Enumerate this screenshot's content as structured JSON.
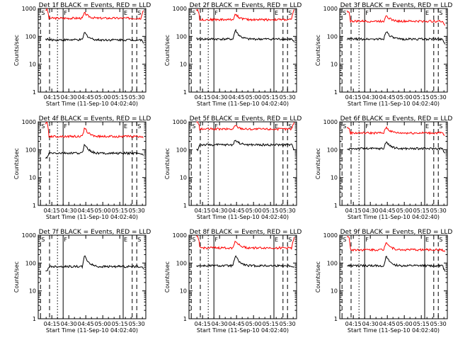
{
  "chart_data": [
    {
      "type": "line",
      "title": "Det 1f BLACK = Events, RED = LLD",
      "xlabel": "Start Time (11-Sep-10 04:02:40)",
      "ylabel": "Counts/sec",
      "yscale": "log",
      "ylim": [
        1,
        1000
      ],
      "x_ticks": [
        "04:15",
        "04:30",
        "04:45",
        "05:00",
        "05:15",
        "05:30"
      ],
      "y_ticks": [
        "1",
        "10",
        "100",
        "1000"
      ],
      "markers": [
        {
          "label": "S",
          "time": "04:05",
          "style": "dashed"
        },
        {
          "label": "",
          "time": "04:13",
          "style": "dashed"
        },
        {
          "label": "",
          "time": "04:20",
          "style": "dotted"
        },
        {
          "label": "F",
          "time": "04:25",
          "style": "solid"
        },
        {
          "label": "E",
          "time": "05:18",
          "style": "solid"
        },
        {
          "label": "",
          "time": "05:26",
          "style": "dashed"
        },
        {
          "label": "S",
          "time": "05:30",
          "style": "dashed"
        }
      ],
      "series": [
        {
          "color": "#ff0000",
          "base": 450,
          "spike": 700,
          "start_value": 900,
          "end_value": 900
        },
        {
          "color": "#000000",
          "base": 75,
          "spike": 140,
          "start_value": 80,
          "end_value": 60
        }
      ]
    },
    {
      "type": "line",
      "title": "Det 2f BLACK = Events, RED = LLD",
      "xlabel": "Start Time (11-Sep-10 04:02:40)",
      "ylabel": "Counts/sec",
      "yscale": "log",
      "ylim": [
        1,
        1000
      ],
      "x_ticks": [
        "04:15",
        "04:30",
        "04:45",
        "05:00",
        "05:15",
        "05:30"
      ],
      "y_ticks": [
        "1",
        "10",
        "100",
        "1000"
      ],
      "markers": [
        {
          "label": "S",
          "time": "04:05",
          "style": "dashed"
        },
        {
          "label": "",
          "time": "04:13",
          "style": "dashed"
        },
        {
          "label": "",
          "time": "04:20",
          "style": "dotted"
        },
        {
          "label": "F",
          "time": "04:25",
          "style": "solid"
        },
        {
          "label": "E",
          "time": "05:18",
          "style": "solid"
        },
        {
          "label": "",
          "time": "05:26",
          "style": "dashed"
        },
        {
          "label": "S",
          "time": "05:30",
          "style": "dashed"
        }
      ],
      "series": [
        {
          "color": "#ff0000",
          "base": 400,
          "spike": 650,
          "start_value": 900,
          "end_value": 900
        },
        {
          "color": "#000000",
          "base": 80,
          "spike": 170,
          "start_value": 80,
          "end_value": 60
        }
      ]
    },
    {
      "type": "line",
      "title": "Det 3f BLACK = Events, RED = LLD",
      "xlabel": "Start Time (11-Sep-10 04:02:40)",
      "ylabel": "Counts/sec",
      "yscale": "log",
      "ylim": [
        1,
        1000
      ],
      "x_ticks": [
        "04:15",
        "04:30",
        "04:45",
        "05:00",
        "05:15",
        "05:30"
      ],
      "y_ticks": [
        "1",
        "10",
        "100",
        "1000"
      ],
      "markers": [
        {
          "label": "S",
          "time": "04:05",
          "style": "dashed"
        },
        {
          "label": "",
          "time": "04:13",
          "style": "dashed"
        },
        {
          "label": "",
          "time": "04:20",
          "style": "dotted"
        },
        {
          "label": "F",
          "time": "04:25",
          "style": "solid"
        },
        {
          "label": "E",
          "time": "05:18",
          "style": "solid"
        },
        {
          "label": "",
          "time": "05:26",
          "style": "dashed"
        },
        {
          "label": "S",
          "time": "05:30",
          "style": "dashed"
        }
      ],
      "series": [
        {
          "color": "#ff0000",
          "base": 350,
          "spike": 600,
          "start_value": 800,
          "end_value": 250
        },
        {
          "color": "#000000",
          "base": 80,
          "spike": 160,
          "start_value": 80,
          "end_value": 55
        }
      ]
    },
    {
      "type": "line",
      "title": "Det 4f BLACK = Events, RED = LLD",
      "xlabel": "Start Time (11-Sep-10 04:02:40)",
      "ylabel": "Counts/sec",
      "yscale": "log",
      "ylim": [
        1,
        1000
      ],
      "x_ticks": [
        "04:15",
        "04:30",
        "04:45",
        "05:00",
        "05:15",
        "05:30"
      ],
      "y_ticks": [
        "1",
        "10",
        "100",
        "1000"
      ],
      "markers": [
        {
          "label": "S",
          "time": "04:05",
          "style": "dashed"
        },
        {
          "label": "",
          "time": "04:13",
          "style": "dashed"
        },
        {
          "label": "",
          "time": "04:20",
          "style": "dotted"
        },
        {
          "label": "F",
          "time": "04:25",
          "style": "solid"
        },
        {
          "label": "E",
          "time": "05:18",
          "style": "solid"
        },
        {
          "label": "",
          "time": "05:26",
          "style": "dashed"
        },
        {
          "label": "S",
          "time": "05:30",
          "style": "dashed"
        }
      ],
      "series": [
        {
          "color": "#ff0000",
          "base": 300,
          "spike": 600,
          "start_value": 900,
          "end_value": 250
        },
        {
          "color": "#000000",
          "base": 75,
          "spike": 160,
          "start_value": 50,
          "end_value": 60
        }
      ]
    },
    {
      "type": "line",
      "title": "Det 5f BLACK = Events, RED = LLD",
      "xlabel": "Start Time (11-Sep-10 04:02:40)",
      "ylabel": "Counts/sec",
      "yscale": "log",
      "ylim": [
        1,
        1000
      ],
      "x_ticks": [
        "04:15",
        "04:30",
        "04:45",
        "05:00",
        "05:15",
        "05:30"
      ],
      "y_ticks": [
        "1",
        "10",
        "100",
        "1000"
      ],
      "markers": [
        {
          "label": "S",
          "time": "04:05",
          "style": "dashed"
        },
        {
          "label": "",
          "time": "04:13",
          "style": "dashed"
        },
        {
          "label": "",
          "time": "04:20",
          "style": "dotted"
        },
        {
          "label": "F",
          "time": "04:25",
          "style": "solid"
        },
        {
          "label": "E",
          "time": "05:18",
          "style": "solid"
        },
        {
          "label": "",
          "time": "05:26",
          "style": "dashed"
        },
        {
          "label": "S",
          "time": "05:30",
          "style": "dashed"
        }
      ],
      "series": [
        {
          "color": "#ff0000",
          "base": 550,
          "spike": 750,
          "start_value": 1000,
          "end_value": 1000
        },
        {
          "color": "#000000",
          "base": 150,
          "spike": 230,
          "start_value": 100,
          "end_value": 100
        }
      ]
    },
    {
      "type": "line",
      "title": "Det 6f BLACK = Events, RED = LLD",
      "xlabel": "Start Time (11-Sep-10 04:02:40)",
      "ylabel": "Counts/sec",
      "yscale": "log",
      "ylim": [
        1,
        1000
      ],
      "x_ticks": [
        "04:15",
        "04:30",
        "04:45",
        "05:00",
        "05:15",
        "05:30"
      ],
      "y_ticks": [
        "1",
        "10",
        "100",
        "1000"
      ],
      "markers": [
        {
          "label": "S",
          "time": "04:05",
          "style": "dashed"
        },
        {
          "label": "",
          "time": "04:13",
          "style": "dashed"
        },
        {
          "label": "",
          "time": "04:20",
          "style": "dotted"
        },
        {
          "label": "F",
          "time": "04:25",
          "style": "solid"
        },
        {
          "label": "E",
          "time": "05:18",
          "style": "solid"
        },
        {
          "label": "",
          "time": "05:26",
          "style": "dashed"
        },
        {
          "label": "S",
          "time": "05:30",
          "style": "dashed"
        }
      ],
      "series": [
        {
          "color": "#ff0000",
          "base": 400,
          "spike": 650,
          "start_value": 600,
          "end_value": 300
        },
        {
          "color": "#000000",
          "base": 110,
          "spike": 200,
          "start_value": 100,
          "end_value": 70
        }
      ]
    },
    {
      "type": "line",
      "title": "Det 7f BLACK = Events, RED = LLD",
      "xlabel": "Start Time (11-Sep-10 04:02:40)",
      "ylabel": "Counts/sec",
      "yscale": "log",
      "ylim": [
        1,
        1000
      ],
      "x_ticks": [
        "04:15",
        "04:30",
        "04:45",
        "05:00",
        "05:15",
        "05:30"
      ],
      "y_ticks": [
        "1",
        "10",
        "100",
        "1000"
      ],
      "markers": [
        {
          "label": "S",
          "time": "04:05",
          "style": "dashed"
        },
        {
          "label": "",
          "time": "04:13",
          "style": "dashed"
        },
        {
          "label": "",
          "time": "04:20",
          "style": "dotted"
        },
        {
          "label": "F",
          "time": "04:25",
          "style": "solid"
        },
        {
          "label": "E",
          "time": "05:18",
          "style": "solid"
        },
        {
          "label": "",
          "time": "05:26",
          "style": "dashed"
        },
        {
          "label": "S",
          "time": "05:30",
          "style": "dashed"
        }
      ],
      "series": [
        {
          "color": "#000000",
          "base": 75,
          "spike": 180,
          "start_value": 50,
          "end_value": 60
        }
      ]
    },
    {
      "type": "line",
      "title": "Det 8f BLACK = Events, RED = LLD",
      "xlabel": "Start Time (11-Sep-10 04:02:40)",
      "ylabel": "Counts/sec",
      "yscale": "log",
      "ylim": [
        1,
        1000
      ],
      "x_ticks": [
        "04:15",
        "04:30",
        "04:45",
        "05:00",
        "05:15",
        "05:30"
      ],
      "y_ticks": [
        "1",
        "10",
        "100",
        "1000"
      ],
      "markers": [
        {
          "label": "S",
          "time": "04:05",
          "style": "dashed"
        },
        {
          "label": "",
          "time": "04:13",
          "style": "dashed"
        },
        {
          "label": "",
          "time": "04:20",
          "style": "dotted"
        },
        {
          "label": "F",
          "time": "04:25",
          "style": "solid"
        },
        {
          "label": "E",
          "time": "05:18",
          "style": "solid"
        },
        {
          "label": "",
          "time": "05:26",
          "style": "dashed"
        },
        {
          "label": "S",
          "time": "05:30",
          "style": "dashed"
        }
      ],
      "series": [
        {
          "color": "#ff0000",
          "base": 350,
          "spike": 650,
          "start_value": 900,
          "end_value": 800
        },
        {
          "color": "#000000",
          "base": 80,
          "spike": 180,
          "start_value": 80,
          "end_value": 70
        }
      ]
    },
    {
      "type": "line",
      "title": "Det 9f BLACK = Events, RED = LLD",
      "xlabel": "Start Time (11-Sep-10 04:02:40)",
      "ylabel": "Counts/sec",
      "yscale": "log",
      "ylim": [
        1,
        1000
      ],
      "x_ticks": [
        "04:15",
        "04:30",
        "04:45",
        "05:00",
        "05:15",
        "05:30"
      ],
      "y_ticks": [
        "1",
        "10",
        "100",
        "1000"
      ],
      "markers": [
        {
          "label": "S",
          "time": "04:05",
          "style": "dashed"
        },
        {
          "label": "",
          "time": "04:13",
          "style": "dashed"
        },
        {
          "label": "",
          "time": "04:20",
          "style": "dotted"
        },
        {
          "label": "F",
          "time": "04:25",
          "style": "solid"
        },
        {
          "label": "E",
          "time": "05:18",
          "style": "solid"
        },
        {
          "label": "",
          "time": "05:26",
          "style": "dashed"
        },
        {
          "label": "S",
          "time": "05:30",
          "style": "dashed"
        }
      ],
      "series": [
        {
          "color": "#ff0000",
          "base": 300,
          "spike": 600,
          "start_value": 900,
          "end_value": 250
        },
        {
          "color": "#000000",
          "base": 80,
          "spike": 170,
          "start_value": 80,
          "end_value": 50
        }
      ]
    }
  ]
}
